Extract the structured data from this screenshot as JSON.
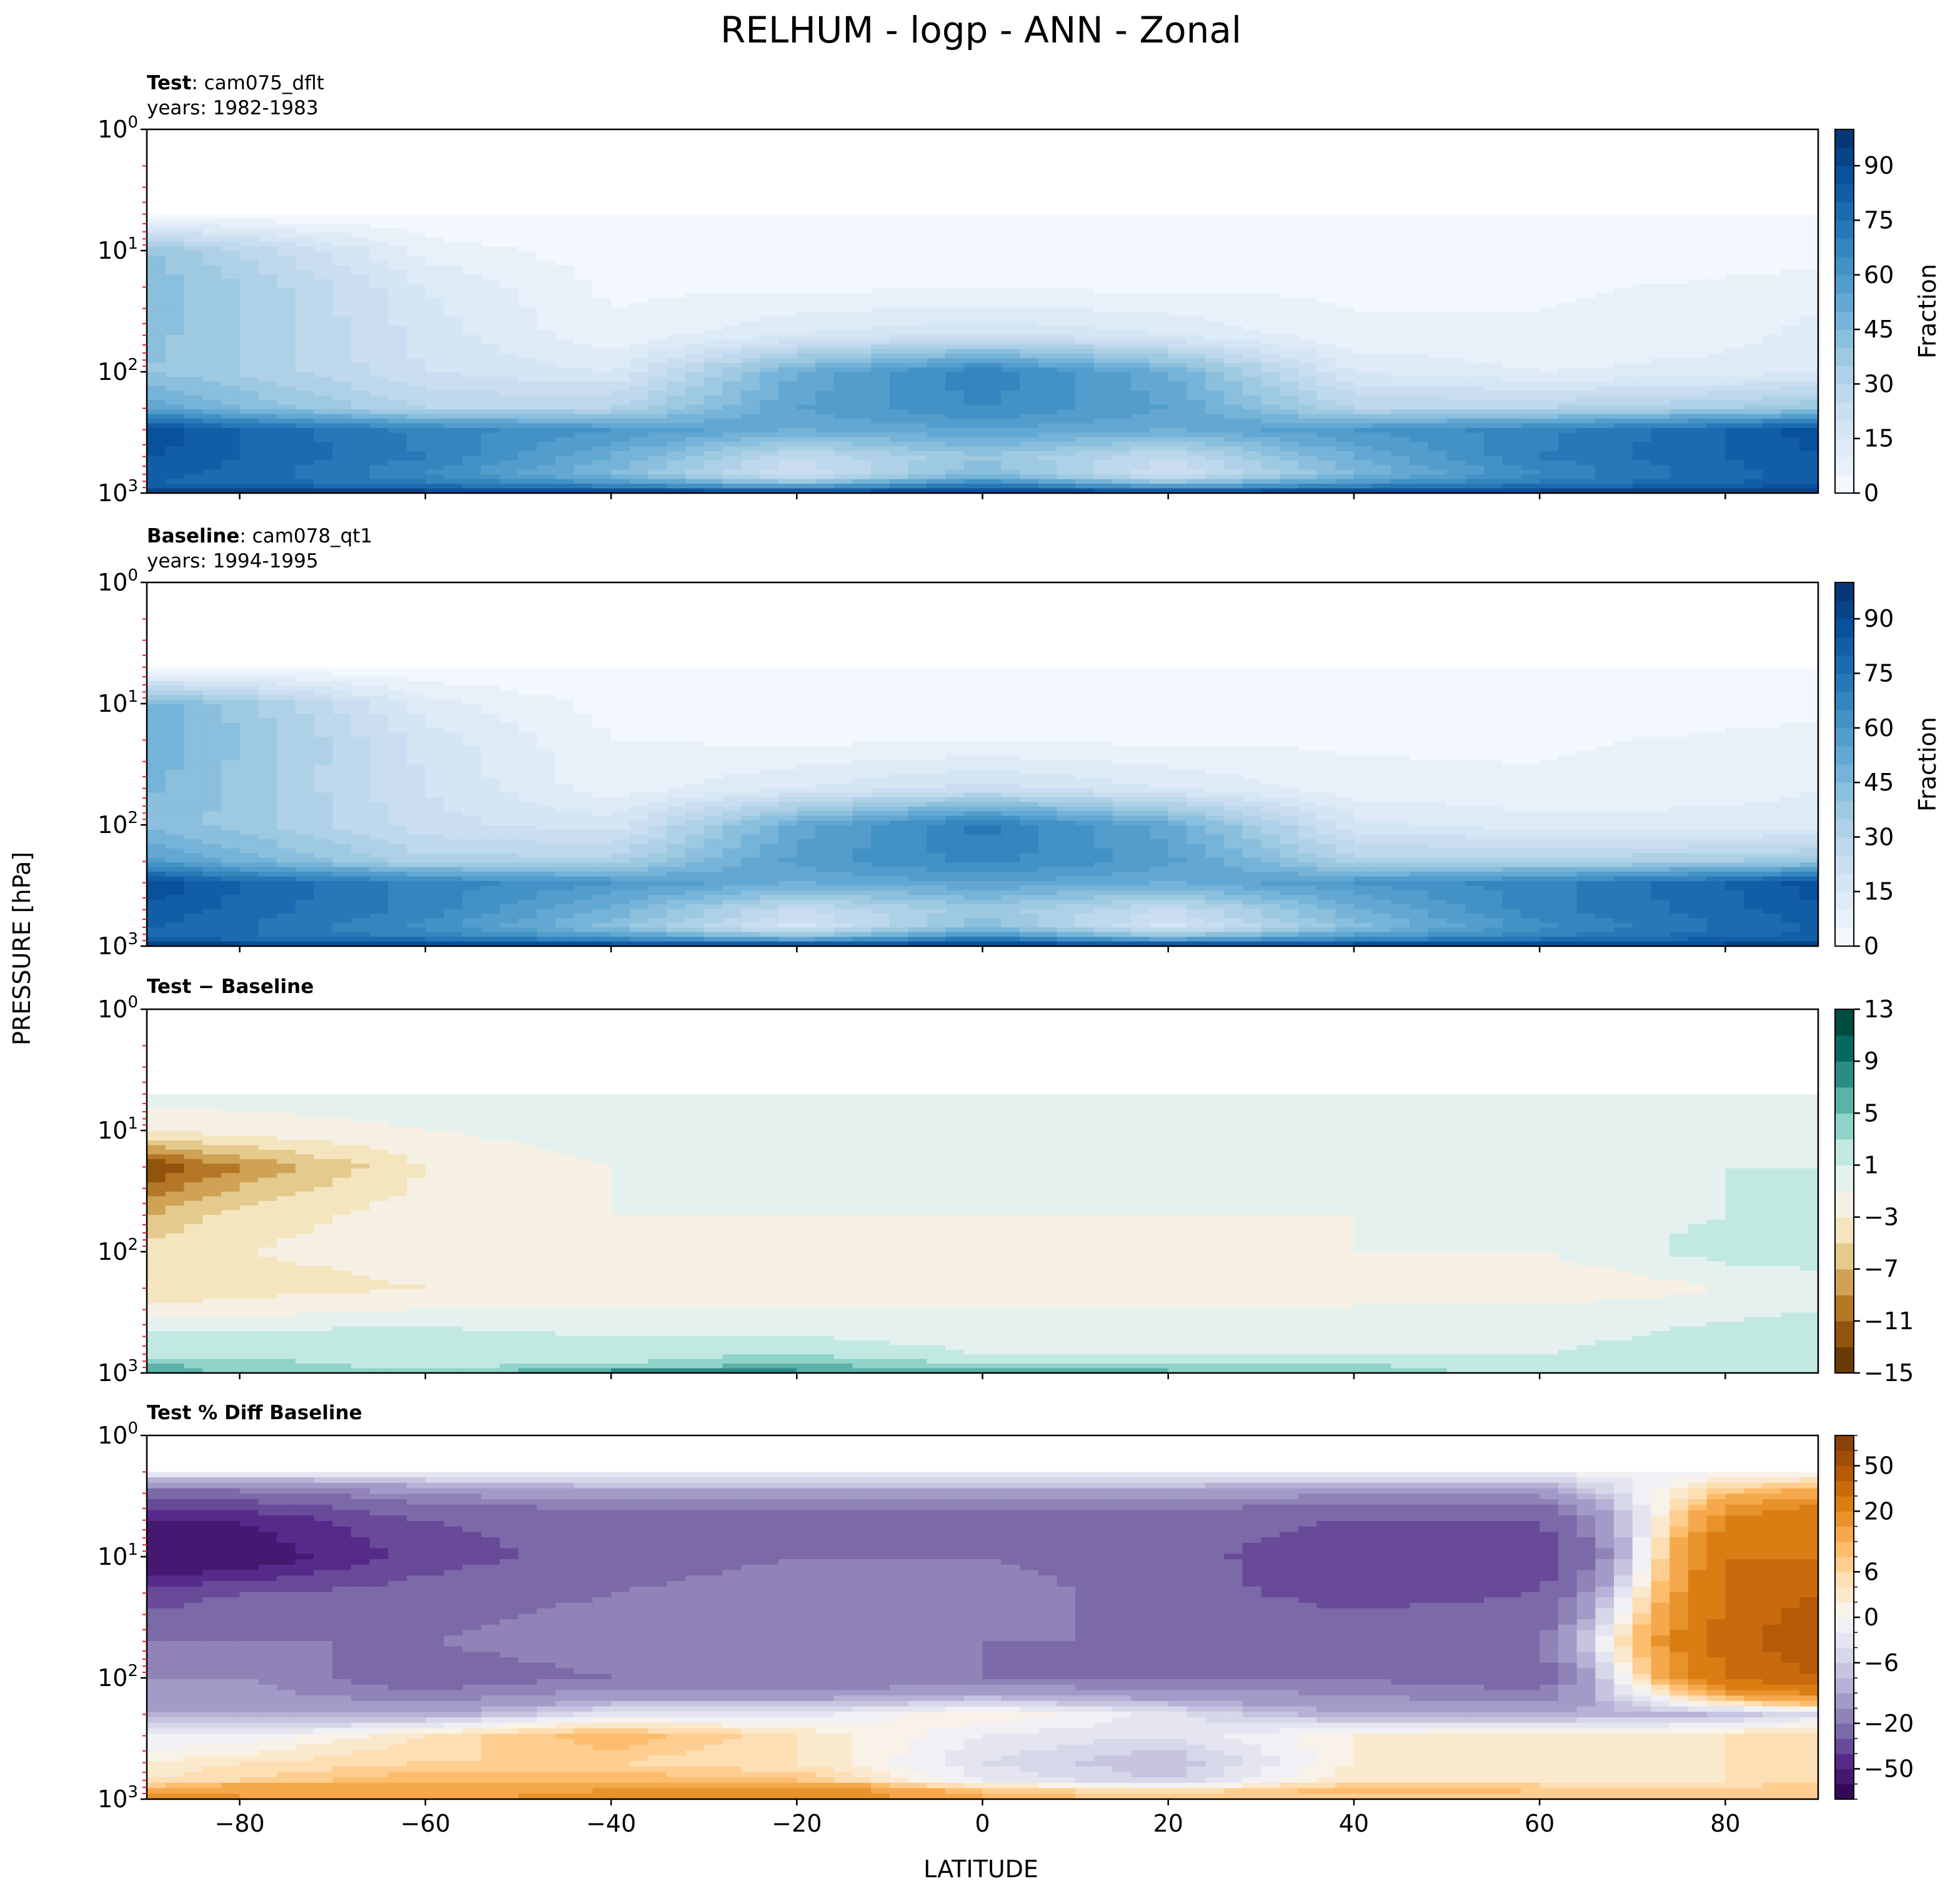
{
  "title": "RELHUM - logp - ANN - Zonal",
  "ylabel": "PRESSURE [hPa]",
  "xlabel": "LATITUDE",
  "chart_data": [
    {
      "type": "contour",
      "title_bold": "Test",
      "title_rest": ": cam075_dflt",
      "subtitle": "years: 1982-1983",
      "x_ticks": [
        -80,
        -60,
        -40,
        -20,
        0,
        20,
        40,
        60,
        80
      ],
      "xlim": [
        -90,
        90
      ],
      "y_scale": "log",
      "y_inverted": true,
      "ylim": [
        1000,
        1
      ],
      "y_ticks": [
        {
          "base": "10",
          "exp": "0"
        },
        {
          "base": "10",
          "exp": "1"
        },
        {
          "base": "10",
          "exp": "2"
        },
        {
          "base": "10",
          "exp": "3"
        }
      ],
      "colormap": "Blues",
      "colorbar": {
        "label": "Fraction",
        "ticks": [
          0,
          15,
          30,
          45,
          60,
          75,
          90
        ],
        "range": [
          0,
          100
        ]
      },
      "field": {
        "lat": [
          -90,
          -80,
          -60,
          -40,
          -20,
          0,
          20,
          40,
          60,
          80,
          90
        ],
        "p": [
          5,
          10,
          20,
          50,
          100,
          200,
          300,
          500,
          700,
          850,
          950
        ],
        "values": [
          [
            0,
            0,
            0,
            0,
            0,
            0,
            0,
            0,
            0,
            0,
            0
          ],
          [
            40,
            30,
            8,
            2,
            2,
            2,
            2,
            2,
            2,
            2,
            2
          ],
          [
            45,
            35,
            15,
            4,
            4,
            4,
            4,
            4,
            4,
            6,
            8
          ],
          [
            42,
            35,
            18,
            6,
            15,
            20,
            15,
            6,
            6,
            8,
            12
          ],
          [
            40,
            35,
            20,
            15,
            50,
            70,
            50,
            15,
            10,
            12,
            15
          ],
          [
            55,
            45,
            30,
            30,
            55,
            65,
            55,
            30,
            30,
            35,
            40
          ],
          [
            90,
            80,
            68,
            60,
            50,
            55,
            50,
            60,
            68,
            80,
            88
          ],
          [
            85,
            80,
            70,
            50,
            25,
            40,
            25,
            50,
            70,
            80,
            85
          ],
          [
            82,
            78,
            65,
            45,
            20,
            45,
            20,
            45,
            65,
            78,
            82
          ],
          [
            80,
            78,
            72,
            62,
            45,
            70,
            45,
            62,
            72,
            80,
            85
          ],
          [
            92,
            92,
            90,
            88,
            82,
            90,
            82,
            88,
            90,
            92,
            95
          ]
        ]
      }
    },
    {
      "type": "contour",
      "title_bold": "Baseline",
      "title_rest": ": cam078_qt1",
      "subtitle": "years: 1994-1995",
      "x_ticks": [
        -80,
        -60,
        -40,
        -20,
        0,
        20,
        40,
        60,
        80
      ],
      "xlim": [
        -90,
        90
      ],
      "y_scale": "log",
      "y_inverted": true,
      "ylim": [
        1000,
        1
      ],
      "y_ticks": [
        {
          "base": "10",
          "exp": "0"
        },
        {
          "base": "10",
          "exp": "1"
        },
        {
          "base": "10",
          "exp": "2"
        },
        {
          "base": "10",
          "exp": "3"
        }
      ],
      "colormap": "Blues",
      "colorbar": {
        "label": "Fraction",
        "ticks": [
          0,
          15,
          30,
          45,
          60,
          75,
          90
        ],
        "range": [
          0,
          100
        ]
      },
      "field": {
        "lat": [
          -90,
          -80,
          -60,
          -40,
          -20,
          0,
          20,
          40,
          60,
          80,
          90
        ],
        "p": [
          5,
          10,
          20,
          50,
          100,
          200,
          300,
          500,
          700,
          850,
          950
        ],
        "values": [
          [
            0,
            0,
            0,
            0,
            0,
            0,
            0,
            0,
            0,
            0,
            0
          ],
          [
            48,
            38,
            12,
            3,
            2,
            2,
            2,
            2,
            2,
            2,
            2
          ],
          [
            50,
            40,
            18,
            5,
            4,
            4,
            4,
            4,
            4,
            6,
            8
          ],
          [
            46,
            38,
            20,
            7,
            15,
            22,
            15,
            7,
            6,
            8,
            10
          ],
          [
            44,
            38,
            22,
            17,
            52,
            72,
            52,
            17,
            12,
            12,
            12
          ],
          [
            58,
            48,
            32,
            32,
            57,
            67,
            57,
            32,
            32,
            35,
            38
          ],
          [
            90,
            80,
            68,
            60,
            50,
            55,
            50,
            60,
            68,
            80,
            88
          ],
          [
            84,
            78,
            68,
            48,
            24,
            38,
            24,
            48,
            68,
            78,
            84
          ],
          [
            80,
            76,
            63,
            43,
            18,
            43,
            18,
            43,
            63,
            76,
            80
          ],
          [
            78,
            76,
            70,
            60,
            43,
            68,
            43,
            60,
            70,
            78,
            82
          ],
          [
            90,
            90,
            88,
            85,
            80,
            88,
            80,
            85,
            88,
            90,
            92
          ]
        ]
      }
    },
    {
      "type": "contour",
      "title_bold": "Test − Baseline",
      "title_rest": "",
      "subtitle": "",
      "x_ticks": [
        -80,
        -60,
        -40,
        -20,
        0,
        20,
        40,
        60,
        80
      ],
      "xlim": [
        -90,
        90
      ],
      "y_scale": "log",
      "y_inverted": true,
      "ylim": [
        1000,
        1
      ],
      "y_ticks": [
        {
          "base": "10",
          "exp": "0"
        },
        {
          "base": "10",
          "exp": "1"
        },
        {
          "base": "10",
          "exp": "2"
        },
        {
          "base": "10",
          "exp": "3"
        }
      ],
      "colormap": "BrBG",
      "colorbar": {
        "label": "",
        "ticks": [
          13,
          9,
          5,
          1,
          -3,
          -7,
          -11,
          -15
        ],
        "range": [
          -15,
          13
        ]
      },
      "field": {
        "lat": [
          -90,
          -80,
          -60,
          -40,
          -20,
          0,
          20,
          40,
          60,
          80,
          90
        ],
        "p": [
          5,
          10,
          20,
          50,
          100,
          200,
          300,
          500,
          700,
          850,
          950
        ],
        "values": [
          [
            0,
            0,
            0,
            0,
            0,
            0,
            0,
            0,
            0,
            0,
            0
          ],
          [
            -3,
            -2,
            -1,
            0,
            0,
            0,
            0,
            0,
            0,
            0,
            0
          ],
          [
            -13,
            -9,
            -3,
            -1,
            0,
            0,
            0,
            0,
            0,
            1,
            1
          ],
          [
            -7,
            -4,
            -2,
            -1,
            -1,
            -1,
            -1,
            -1,
            0,
            1,
            2
          ],
          [
            -4,
            -3,
            -2,
            -1,
            -2,
            -3,
            -2,
            -1,
            -1,
            2,
            2
          ],
          [
            -5,
            -4,
            -3,
            -1,
            -3,
            -1,
            -2,
            -1,
            -3,
            -1,
            0
          ],
          [
            -2,
            -2,
            -1,
            -1,
            -1,
            -1,
            -1,
            -1,
            0,
            0,
            1
          ],
          [
            2,
            2,
            2,
            1,
            1,
            0,
            0,
            1,
            0,
            2,
            3
          ],
          [
            2,
            2,
            2,
            2,
            3,
            1,
            1,
            1,
            1,
            3,
            3
          ],
          [
            5,
            4,
            2,
            3,
            5,
            3,
            3,
            3,
            2,
            2,
            3
          ],
          [
            7,
            4,
            3,
            7,
            7,
            5,
            5,
            4,
            2,
            1,
            2
          ]
        ]
      }
    },
    {
      "type": "contour",
      "title_bold": "Test % Diff Baseline",
      "title_rest": "",
      "subtitle": "",
      "x_ticks": [
        -80,
        -60,
        -40,
        -20,
        0,
        20,
        40,
        60,
        80
      ],
      "xlim": [
        -90,
        90
      ],
      "y_scale": "log",
      "y_inverted": true,
      "ylim": [
        1000,
        1
      ],
      "y_ticks": [
        {
          "base": "10",
          "exp": "0"
        },
        {
          "base": "10",
          "exp": "1"
        },
        {
          "base": "10",
          "exp": "2"
        },
        {
          "base": "10",
          "exp": "3"
        }
      ],
      "colormap": "PuOr",
      "colorbar": {
        "label": "",
        "ticks": [
          50,
          20,
          6,
          0,
          -6,
          -20,
          -50
        ],
        "levels": [
          -100,
          -70,
          -50,
          -40,
          -30,
          -20,
          -15,
          -10,
          -8,
          -6,
          -4,
          -2,
          0,
          2,
          4,
          6,
          8,
          10,
          15,
          20,
          30,
          40,
          50,
          70,
          100
        ]
      },
      "field": {
        "lat": [
          -90,
          -80,
          -60,
          -40,
          -20,
          0,
          20,
          40,
          60,
          80,
          90
        ],
        "p": [
          2,
          5,
          10,
          20,
          50,
          100,
          200,
          300,
          500,
          700,
          850,
          950
        ],
        "values": [
          [
            -1,
            -1,
            -1,
            -1,
            -1,
            -1,
            -1,
            -1,
            -1,
            -1,
            -1
          ],
          [
            -50,
            -50,
            -30,
            -25,
            -25,
            -25,
            -25,
            -30,
            -30,
            20,
            30
          ],
          [
            -70,
            -60,
            -35,
            -25,
            -20,
            -20,
            -25,
            -40,
            -40,
            30,
            30
          ],
          [
            -35,
            -30,
            -25,
            -20,
            -15,
            -15,
            -25,
            -35,
            -30,
            30,
            40
          ],
          [
            -20,
            -20,
            -20,
            -15,
            -15,
            -20,
            -20,
            -20,
            -20,
            35,
            50
          ],
          [
            -15,
            -15,
            -25,
            -20,
            -20,
            -20,
            -20,
            -20,
            -25,
            30,
            40
          ],
          [
            -10,
            -10,
            -10,
            -3,
            -3,
            2,
            -3,
            -10,
            -10,
            -8,
            -4
          ],
          [
            -2,
            -2,
            4,
            10,
            4,
            -2,
            -4,
            2,
            4,
            4,
            6
          ],
          [
            2,
            4,
            6,
            6,
            4,
            -4,
            -8,
            2,
            4,
            4,
            4
          ],
          [
            4,
            6,
            10,
            10,
            8,
            -2,
            -6,
            4,
            4,
            4,
            6
          ],
          [
            10,
            15,
            10,
            15,
            20,
            8,
            4,
            10,
            8,
            6,
            8
          ],
          [
            20,
            15,
            10,
            20,
            20,
            10,
            6,
            8,
            6,
            6,
            6
          ]
        ]
      }
    }
  ]
}
